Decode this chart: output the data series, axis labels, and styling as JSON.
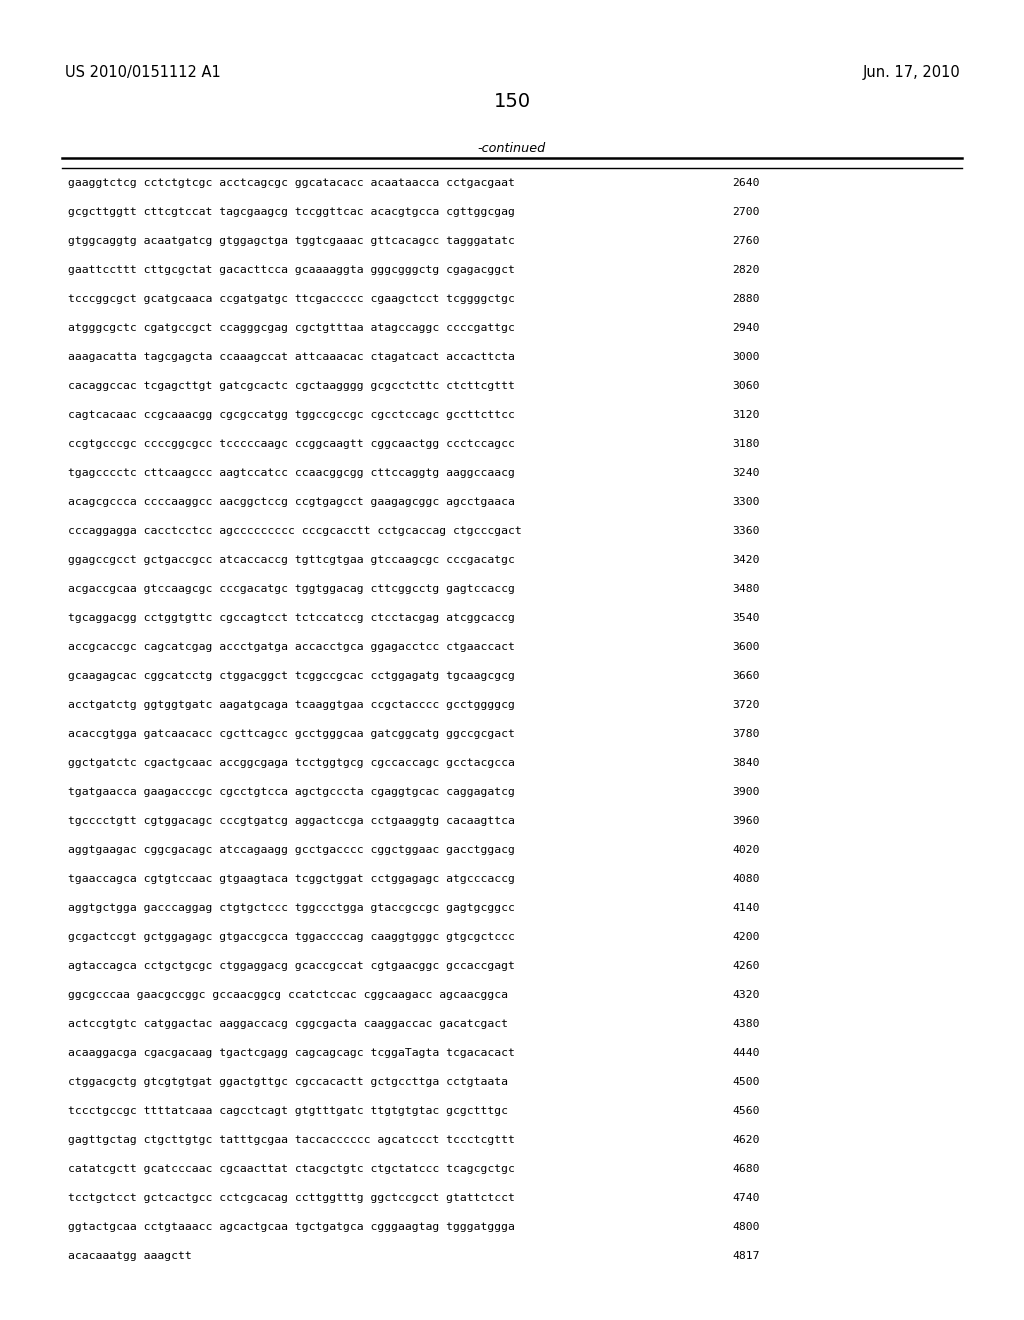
{
  "header_left": "US 2010/0151112 A1",
  "header_right": "Jun. 17, 2010",
  "page_number": "150",
  "continued_label": "-continued",
  "bg_color": "#ffffff",
  "text_color": "#000000",
  "font_size": 8.2,
  "header_font_size": 10.5,
  "page_num_font_size": 14,
  "sequence_data": [
    [
      "gaaggtctcg cctctgtcgc acctcagcgc ggcatacacc acaataacca cctgacgaat",
      "2640"
    ],
    [
      "gcgcttggtt cttcgtccat tagcgaagcg tccggttcac acacgtgcca cgttggcgag",
      "2700"
    ],
    [
      "gtggcaggtg acaatgatcg gtggagctga tggtcgaaac gttcacagcc tagggatatc",
      "2760"
    ],
    [
      "gaattccttt cttgcgctat gacacttcca gcaaaaggta gggcgggctg cgagacggct",
      "2820"
    ],
    [
      "tcccggcgct gcatgcaaca ccgatgatgc ttcgaccccc cgaagctcct tcggggctgc",
      "2880"
    ],
    [
      "atgggcgctc cgatgccgct ccagggcgag cgctgtttaa atagccaggc ccccgattgc",
      "2940"
    ],
    [
      "aaagacatta tagcgagcta ccaaagccat attcaaacac ctagatcact accacttcta",
      "3000"
    ],
    [
      "cacaggccac tcgagcttgt gatcgcactc cgctaagggg gcgcctcttc ctcttcgttt",
      "3060"
    ],
    [
      "cagtcacaac ccgcaaacgg cgcgccatgg tggccgccgc cgcctccagc gccttcttcc",
      "3120"
    ],
    [
      "ccgtgcccgc ccccggcgcc tcccccaagc ccggcaagtt cggcaactgg ccctccagcc",
      "3180"
    ],
    [
      "tgagcccctc cttcaagccc aagtccatcc ccaacggcgg cttccaggtg aaggccaacg",
      "3240"
    ],
    [
      "acagcgccca ccccaaggcc aacggctccg ccgtgagcct gaagagcggc agcctgaaca",
      "3300"
    ],
    [
      "cccaggagga cacctcctcc agccccccccc cccgcacctt cctgcaccag ctgcccgact",
      "3360"
    ],
    [
      "ggagccgcct gctgaccgcc atcaccaccg tgttcgtgaa gtccaagcgc cccgacatgc",
      "3420"
    ],
    [
      "acgaccgcaa gtccaagcgc cccgacatgc tggtggacag cttcggcctg gagtccaccg",
      "3480"
    ],
    [
      "tgcaggacgg cctggtgttc cgccagtcct tctccatccg ctcctacgag atcggcaccg",
      "3540"
    ],
    [
      "accgcaccgc cagcatcgag accctgatga accacctgca ggagacctcc ctgaaccact",
      "3600"
    ],
    [
      "gcaagagcac cggcatcctg ctggacggct tcggccgcac cctggagatg tgcaagcgcg",
      "3660"
    ],
    [
      "acctgatctg ggtggtgatc aagatgcaga tcaaggtgaa ccgctacccc gcctggggcg",
      "3720"
    ],
    [
      "acaccgtgga gatcaacacc cgcttcagcc gcctgggcaa gatcggcatg ggccgcgact",
      "3780"
    ],
    [
      "ggctgatctc cgactgcaac accggcgaga tcctggtgcg cgccaccagc gcctacgcca",
      "3840"
    ],
    [
      "tgatgaacca gaagacccgc cgcctgtcca agctgcccta cgaggtgcac caggagatcg",
      "3900"
    ],
    [
      "tgcccctgtt cgtggacagc cccgtgatcg aggactccga cctgaaggtg cacaagttca",
      "3960"
    ],
    [
      "aggtgaagac cggcgacagc atccagaagg gcctgacccc cggctggaac gacctggacg",
      "4020"
    ],
    [
      "tgaaccagca cgtgtccaac gtgaagtaca tcggctggat cctggagagc atgcccaccg",
      "4080"
    ],
    [
      "aggtgctgga gacccaggag ctgtgctccc tggccctgga gtaccgccgc gagtgcggcc",
      "4140"
    ],
    [
      "gcgactccgt gctggagagc gtgaccgcca tggaccccag caaggtgggc gtgcgctccc",
      "4200"
    ],
    [
      "agtaccagca cctgctgcgc ctggaggacg gcaccgccat cgtgaacggc gccaccgagt",
      "4260"
    ],
    [
      "ggcgcccaa gaacgccggc gccaacggcg ccatctccac cggcaagacc agcaacggca",
      "4320"
    ],
    [
      "actccgtgtc catggactac aaggaccacg cggcgacta caaggaccac gacatcgact",
      "4380"
    ],
    [
      "acaaggacga cgacgacaag tgactcgagg cagcagcagc tcggaTagta tcgacacact",
      "4440"
    ],
    [
      "ctggacgctg gtcgtgtgat ggactgttgc cgccacactt gctgccttga cctgtaata",
      "4500"
    ],
    [
      "tccctgccgc ttttatcaaa cagcctcagt gtgtttgatc ttgtgtgtac gcgctttgc",
      "4560"
    ],
    [
      "gagttgctag ctgcttgtgc tatttgcgaa taccacccccc agcatccct tccctcgttt",
      "4620"
    ],
    [
      "catatcgctt gcatcccaac cgcaacttat ctacgctgtc ctgctatccc tcagcgctgc",
      "4680"
    ],
    [
      "tcctgctcct gctcactgcc cctcgcacag ccttggtttg ggctccgcct gtattctcct",
      "4740"
    ],
    [
      "ggtactgcaa cctgtaaacc agcactgcaa tgctgatgca cgggaagtag tgggatggga",
      "4800"
    ],
    [
      "acacaaatgg aaagctt",
      "4817"
    ]
  ]
}
